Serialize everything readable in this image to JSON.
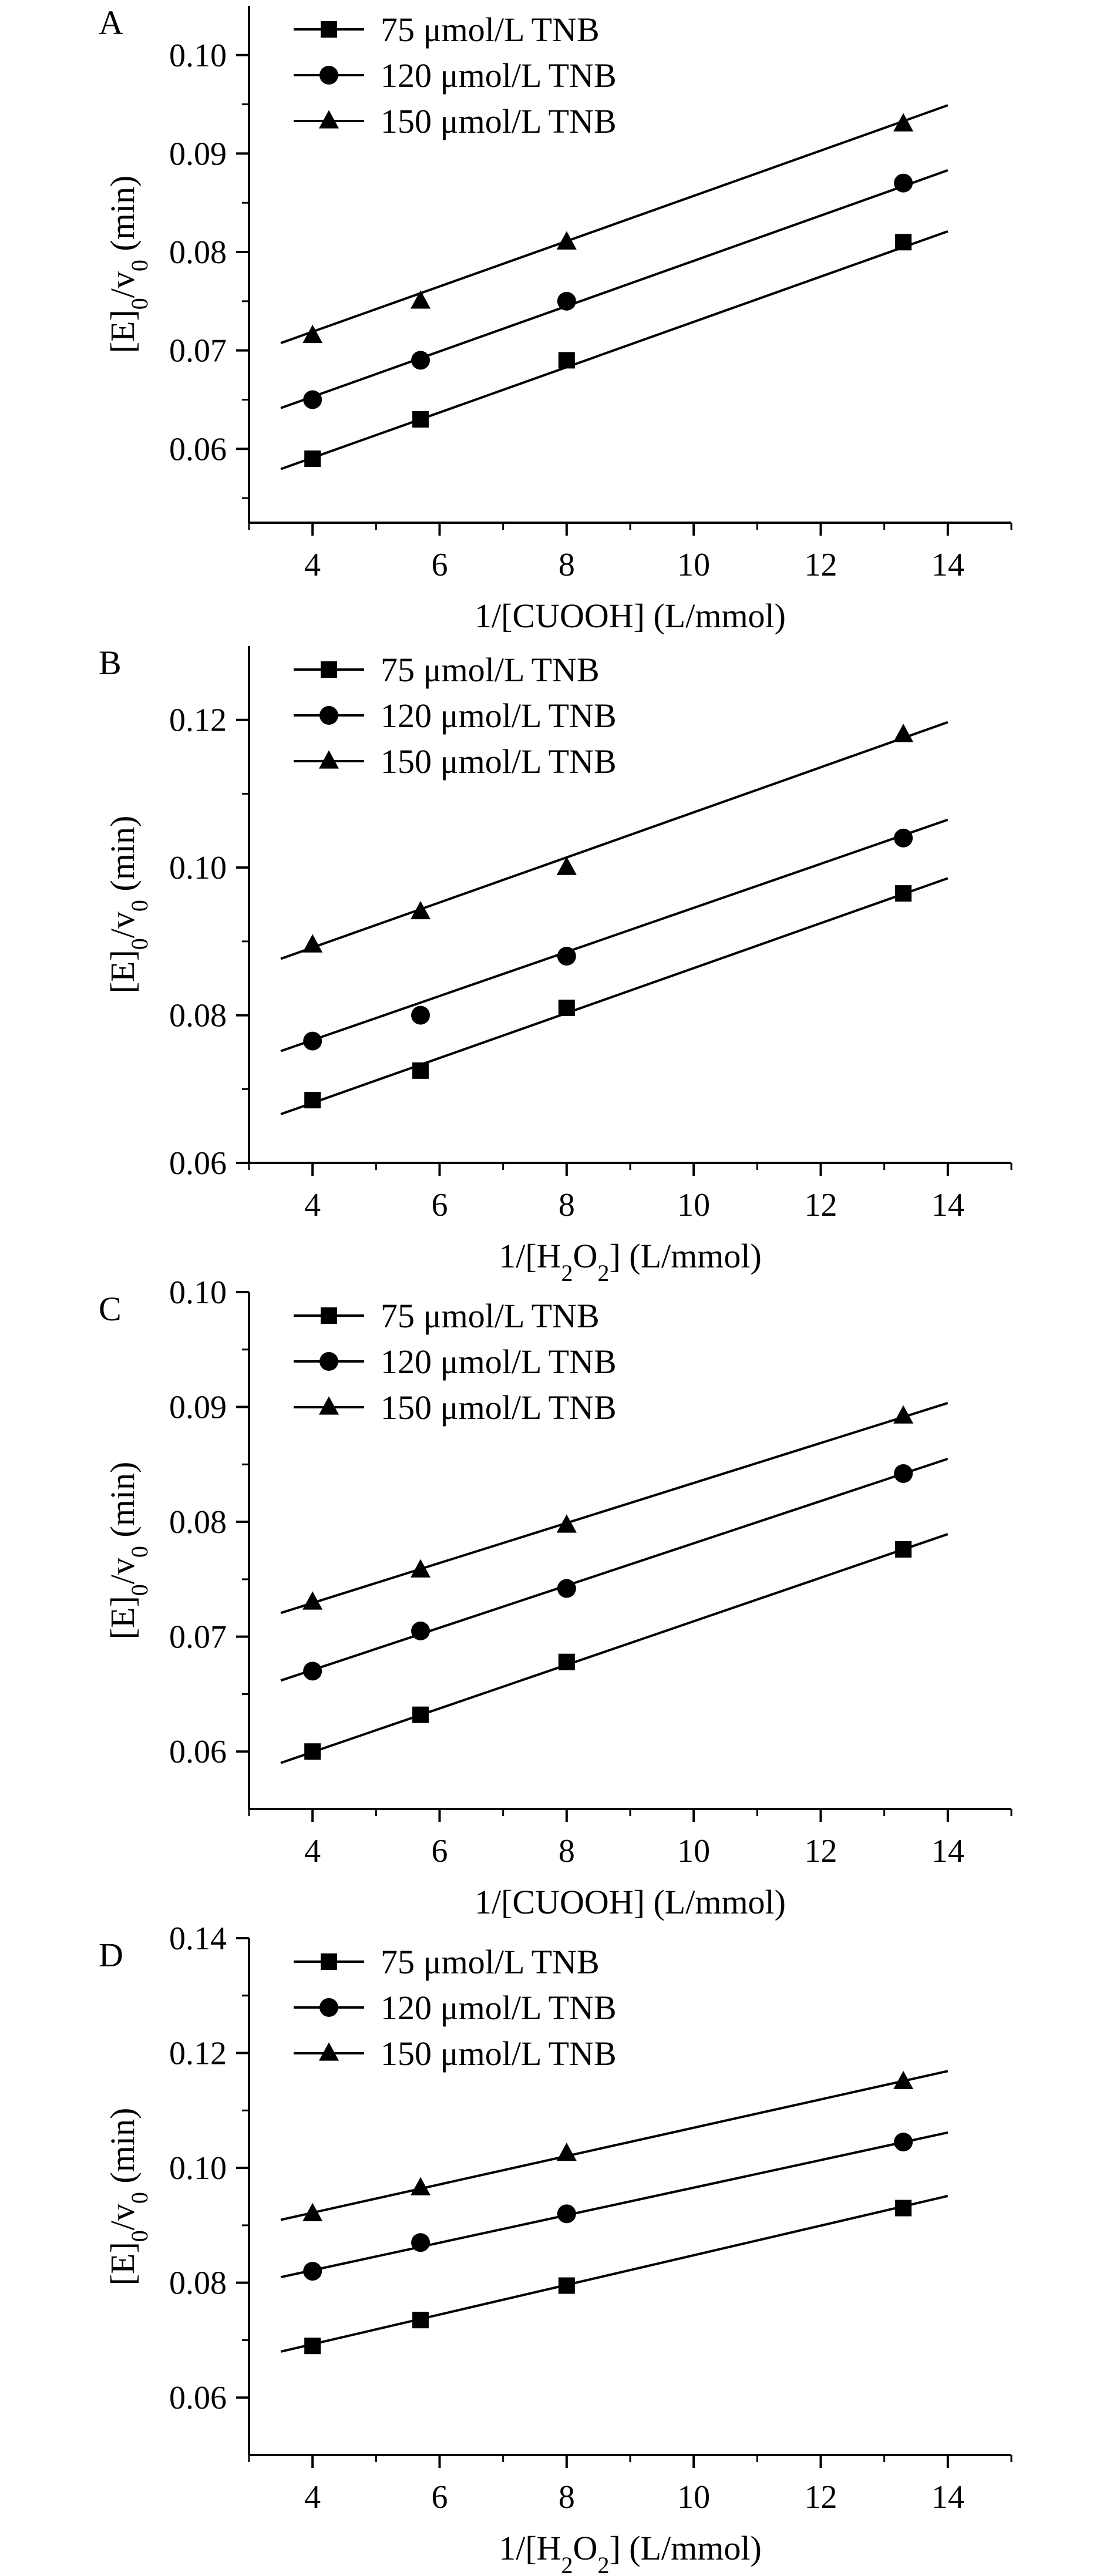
{
  "figure": {
    "ylabel_parts": {
      "a": "[E]",
      "b": "0",
      "c": "/v",
      "d": "0",
      "e": " (min)"
    }
  },
  "chart_data": [
    {
      "type": "line",
      "panel_label": "A",
      "xlabel_parts": {
        "a": "1/[CUOOH] (L/mmol)"
      },
      "ylabel": "[E]0/v0 (min)",
      "xlim": [
        3,
        15
      ],
      "ylim": [
        0.0525,
        0.105
      ],
      "xticks": [
        "4",
        "6",
        "8",
        "10",
        "12",
        "14"
      ],
      "xtick_values": [
        4,
        6,
        8,
        10,
        12,
        14
      ],
      "yticks": [
        "0.06",
        "0.07",
        "0.08",
        "0.09",
        "0.10"
      ],
      "ytick_values": [
        0.06,
        0.07,
        0.08,
        0.09,
        0.1
      ],
      "fit_x_range": [
        3.5,
        14
      ],
      "legend_position": "top-left",
      "grid": false,
      "series": [
        {
          "name": "75 μmol/L TNB",
          "marker": "square",
          "x": [
            4,
            5.7,
            8,
            13.3
          ],
          "y": [
            0.059,
            0.063,
            0.069,
            0.081
          ],
          "fit": {
            "slope": 0.0023,
            "intercept": 0.0499
          }
        },
        {
          "name": "120 μmol/L TNB",
          "marker": "circle",
          "x": [
            4,
            5.7,
            8,
            13.3
          ],
          "y": [
            0.065,
            0.069,
            0.075,
            0.087
          ],
          "fit": {
            "slope": 0.0023,
            "intercept": 0.0561
          }
        },
        {
          "name": "150 μmol/L TNB",
          "marker": "triangle",
          "x": [
            4,
            5.7,
            8,
            13.3
          ],
          "y": [
            0.0715,
            0.075,
            0.081,
            0.093
          ],
          "fit": {
            "slope": 0.0023,
            "intercept": 0.0627
          }
        }
      ]
    },
    {
      "type": "line",
      "panel_label": "B",
      "xlabel_parts": {
        "a": "1/[H",
        "b": "2",
        "c": "O",
        "d": "2",
        "e": "] (L/mmol)"
      },
      "ylabel": "[E]0/v0 (min)",
      "xlim": [
        3,
        15
      ],
      "ylim": [
        0.06,
        0.13
      ],
      "xticks": [
        "4",
        "6",
        "8",
        "10",
        "12",
        "14"
      ],
      "xtick_values": [
        4,
        6,
        8,
        10,
        12,
        14
      ],
      "yticks": [
        "0.06",
        "0.08",
        "0.10",
        "0.12"
      ],
      "ytick_values": [
        0.06,
        0.08,
        0.1,
        0.12
      ],
      "fit_x_range": [
        3.5,
        14
      ],
      "legend_position": "top-left",
      "grid": false,
      "series": [
        {
          "name": "75 μmol/L TNB",
          "marker": "square",
          "x": [
            4,
            5.7,
            8,
            13.3
          ],
          "y": [
            0.0685,
            0.0725,
            0.081,
            0.0965
          ],
          "fit": {
            "slope": 0.003043,
            "intercept": 0.05595
          }
        },
        {
          "name": "120 μmol/L TNB",
          "marker": "circle",
          "x": [
            4,
            5.7,
            8,
            13.3
          ],
          "y": [
            0.0765,
            0.08,
            0.088,
            0.104
          ],
          "fit": {
            "slope": 0.002984,
            "intercept": 0.0647
          }
        },
        {
          "name": "150 μmol/L TNB",
          "marker": "triangle",
          "x": [
            4,
            5.7,
            8,
            13.3
          ],
          "y": [
            0.0895,
            0.094,
            0.1,
            0.118
          ],
          "fit": {
            "slope": 0.003052,
            "intercept": 0.07696
          }
        }
      ]
    },
    {
      "type": "line",
      "panel_label": "C",
      "xlabel_parts": {
        "a": "1/[CUOOH] (L/mmol)"
      },
      "ylabel": "[E]0/v0 (min)",
      "xlim": [
        3,
        15
      ],
      "ylim": [
        0.055,
        0.1
      ],
      "xticks": [
        "4",
        "6",
        "8",
        "10",
        "12",
        "14"
      ],
      "xtick_values": [
        4,
        6,
        8,
        10,
        12,
        14
      ],
      "yticks": [
        "0.06",
        "0.07",
        "0.08",
        "0.09",
        "0.10"
      ],
      "ytick_values": [
        0.06,
        0.07,
        0.08,
        0.09,
        0.1
      ],
      "fit_x_range": [
        3.5,
        14
      ],
      "legend_position": "top-left",
      "grid": false,
      "series": [
        {
          "name": "75 μmol/L TNB",
          "marker": "square",
          "x": [
            4,
            5.7,
            8,
            13.3
          ],
          "y": [
            0.06,
            0.0632,
            0.0678,
            0.0776
          ],
          "fit": {
            "slope": 0.001897,
            "intercept": 0.05237
          }
        },
        {
          "name": "120 μmol/L TNB",
          "marker": "circle",
          "x": [
            4,
            5.7,
            8,
            13.3
          ],
          "y": [
            0.067,
            0.0705,
            0.0742,
            0.0842
          ],
          "fit": {
            "slope": 0.001838,
            "intercept": 0.05975
          }
        },
        {
          "name": "150 μmol/L TNB",
          "marker": "triangle",
          "x": [
            4,
            5.7,
            8,
            13.3
          ],
          "y": [
            0.073,
            0.0758,
            0.0797,
            0.0892
          ],
          "fit": {
            "slope": 0.001741,
            "intercept": 0.06597
          }
        }
      ]
    },
    {
      "type": "line",
      "panel_label": "D",
      "xlabel_parts": {
        "a": "1/[H",
        "b": "2",
        "c": "O",
        "d": "2",
        "e": "] (L/mmol)"
      },
      "ylabel": "[E]0/v0 (min)",
      "xlim": [
        3,
        15
      ],
      "ylim": [
        0.05,
        0.14
      ],
      "xticks": [
        "4",
        "6",
        "8",
        "10",
        "12",
        "14"
      ],
      "xtick_values": [
        4,
        6,
        8,
        10,
        12,
        14
      ],
      "yticks": [
        "0.06",
        "0.08",
        "0.10",
        "0.12",
        "0.14"
      ],
      "ytick_values": [
        0.06,
        0.08,
        0.1,
        0.12,
        0.14
      ],
      "fit_x_range": [
        3.5,
        14
      ],
      "legend_position": "top-left",
      "grid": false,
      "series": [
        {
          "name": "75 μmol/L TNB",
          "marker": "square",
          "x": [
            4,
            5.7,
            8,
            13.3
          ],
          "y": [
            0.069,
            0.0735,
            0.0795,
            0.093
          ],
          "fit": {
            "slope": 0.002581,
            "intercept": 0.05897
          }
        },
        {
          "name": "120 μmol/L TNB",
          "marker": "circle",
          "x": [
            4,
            5.7,
            8,
            13.3
          ],
          "y": [
            0.082,
            0.087,
            0.092,
            0.1045
          ],
          "fit": {
            "slope": 0.002398,
            "intercept": 0.07258
          }
        },
        {
          "name": "150 μmol/L TNB",
          "marker": "triangle",
          "x": [
            4,
            5.7,
            8,
            13.3
          ],
          "y": [
            0.092,
            0.0965,
            0.1025,
            0.115
          ],
          "fit": {
            "slope": 0.002467,
            "intercept": 0.08232
          }
        }
      ]
    }
  ]
}
